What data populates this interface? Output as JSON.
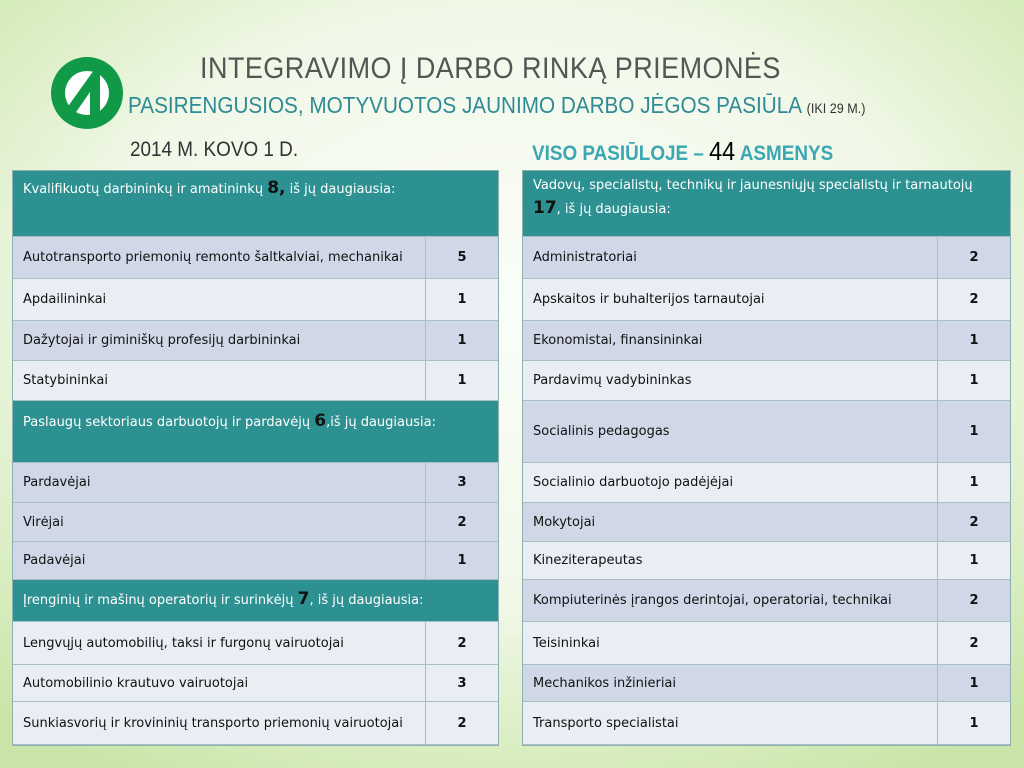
{
  "header": {
    "title": "INTEGRAVIMO Į DARBO RINKĄ PRIEMONĖS",
    "subtitle": "PASIRENGUSIOS, MOTYVUOTOS JAUNIMO DARBO JĖGOS PASIŪLA",
    "subtitle_note": "(IKI 29 M.)",
    "date": "2014 M. KOVO 1 D.",
    "total_prefix": "VISO PASIŪLOJE –",
    "total_value": "44",
    "total_suffix": "ASMENYS"
  },
  "colors": {
    "brand_green": "#109a47",
    "header_teal": "#2e9191",
    "subtitle_teal": "#2f8a95"
  },
  "left": {
    "g1": {
      "text": "Kvalifikuotų darbininkų ir amatininkų",
      "count": "8,",
      "suffix": "iš jų daugiausia:"
    },
    "g1_rows": [
      {
        "name": "Autotransporto priemonių remonto šaltkalviai, mechanikai",
        "value": "5"
      },
      {
        "name": "Apdailininkai",
        "value": "1"
      },
      {
        "name": "Dažytojai ir giminiškų profesijų darbininkai",
        "value": "1"
      },
      {
        "name": "Statybininkai",
        "value": "1"
      }
    ],
    "g2": {
      "text": "Paslaugų sektoriaus darbuotojų ir pardavėjų",
      "count": "6",
      "suffix": ",iš jų daugiausia:"
    },
    "g2_rows": [
      {
        "name": "Pardavėjai",
        "value": "3"
      },
      {
        "name": "Virėjai",
        "value": "2"
      },
      {
        "name": "Padavėjai",
        "value": "1"
      }
    ],
    "g3": {
      "text": "Įrenginių ir mašinų operatorių ir surinkėjų",
      "count": "7",
      "suffix": ", iš jų daugiausia:"
    },
    "g3_rows": [
      {
        "name": "Lengvųjų automobilių, taksi ir furgonų vairuotojai",
        "value": "2"
      },
      {
        "name": "Automobilinio krautuvo vairuotojai",
        "value": "3"
      },
      {
        "name": "Sunkiasvorių ir krovininių transporto priemonių vairuotojai",
        "value": "2"
      }
    ]
  },
  "right": {
    "g1": {
      "text": "Vadovų, specialistų, technikų ir jaunesniųjų specialistų ir tarnautojų",
      "count": "17",
      "suffix": ", iš jų daugiausia:"
    },
    "rows": [
      {
        "name": "Administratoriai",
        "value": "2"
      },
      {
        "name": "Apskaitos ir buhalterijos tarnautojai",
        "value": "2"
      },
      {
        "name": "Ekonomistai, finansininkai",
        "value": "1"
      },
      {
        "name": "Pardavimų vadybininkas",
        "value": "1"
      },
      {
        "name": "Socialinis pedagogas",
        "value": "1"
      },
      {
        "name": "Socialinio darbuotojo padėjėjai",
        "value": "1"
      },
      {
        "name": "Mokytojai",
        "value": "2"
      },
      {
        "name": "Kineziterapeutas",
        "value": "1"
      },
      {
        "name": "Kompiuterinės įrangos derintojai, operatoriai, technikai",
        "value": "2"
      },
      {
        "name": "Teisininkai",
        "value": "2"
      },
      {
        "name": "Mechanikos inžinieriai",
        "value": "1"
      },
      {
        "name": "Transporto specialistai",
        "value": "1"
      }
    ]
  }
}
